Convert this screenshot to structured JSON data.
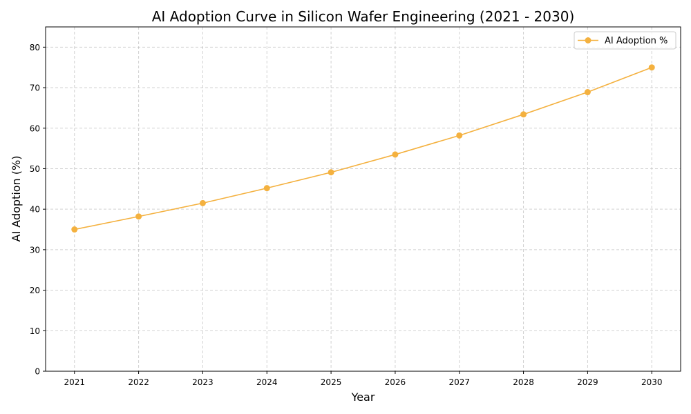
{
  "chart_data": {
    "type": "line",
    "title": "AI Adoption Curve in Silicon Wafer Engineering (2021 - 2030)",
    "xlabel": "Year",
    "ylabel": "AI Adoption (%)",
    "x": [
      2021,
      2022,
      2023,
      2024,
      2025,
      2026,
      2027,
      2028,
      2029,
      2030
    ],
    "series": [
      {
        "name": "AI Adoption %",
        "values": [
          35.0,
          38.2,
          41.5,
          45.2,
          49.1,
          53.5,
          58.2,
          63.4,
          68.9,
          75.0
        ],
        "color": "#f4b13f",
        "marker": "circle"
      }
    ],
    "xlim": [
      2020.55,
      2030.45
    ],
    "ylim": [
      0,
      85
    ],
    "yticks": [
      0,
      10,
      20,
      30,
      40,
      50,
      60,
      70,
      80
    ],
    "xticks": [
      2021,
      2022,
      2023,
      2024,
      2025,
      2026,
      2027,
      2028,
      2029,
      2030
    ],
    "grid": true,
    "grid_style": "dashed",
    "legend": "top-right"
  }
}
